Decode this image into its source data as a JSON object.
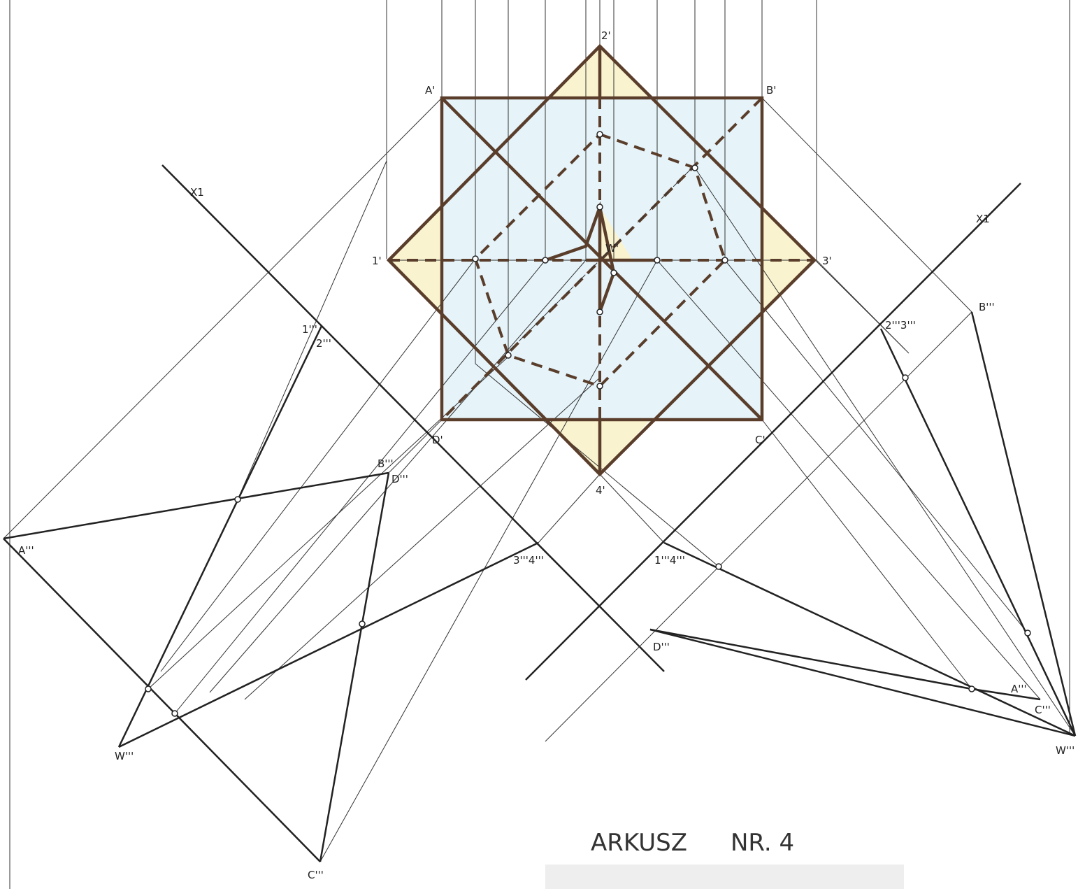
{
  "labels": [
    "2'",
    "A'",
    "B'",
    "1'",
    "3'",
    "W'",
    "D'",
    "C'",
    "4'",
    "X1",
    "X1",
    "1'''",
    "2'''",
    "B'''",
    "D'''",
    "A'''",
    "3'''4'''",
    "W'''",
    "C'''",
    "B'''",
    "2'''3'''",
    "1'''4'''",
    "D'''",
    "A'''",
    "C'''",
    "W'''"
  ],
  "title": {
    "sheet": "ARKUSZ",
    "number": "NR. 4"
  }
}
